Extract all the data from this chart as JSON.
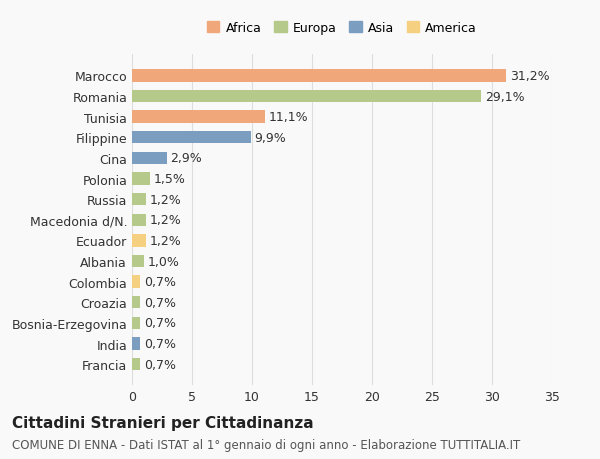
{
  "categories": [
    "Francia",
    "India",
    "Bosnia-Erzegovina",
    "Croazia",
    "Colombia",
    "Albania",
    "Ecuador",
    "Macedonia d/N.",
    "Russia",
    "Polonia",
    "Cina",
    "Filippine",
    "Tunisia",
    "Romania",
    "Marocco"
  ],
  "values": [
    0.7,
    0.7,
    0.7,
    0.7,
    0.7,
    1.0,
    1.2,
    1.2,
    1.2,
    1.5,
    2.9,
    9.9,
    11.1,
    29.1,
    31.2
  ],
  "labels": [
    "0,7%",
    "0,7%",
    "0,7%",
    "0,7%",
    "0,7%",
    "1,0%",
    "1,2%",
    "1,2%",
    "1,2%",
    "1,5%",
    "2,9%",
    "9,9%",
    "11,1%",
    "29,1%",
    "31,2%"
  ],
  "continents": [
    "Europa",
    "Asia",
    "Europa",
    "Europa",
    "America",
    "Europa",
    "America",
    "Europa",
    "Europa",
    "Europa",
    "Asia",
    "Asia",
    "Africa",
    "Europa",
    "Africa"
  ],
  "colors": {
    "Africa": "#F0A87A",
    "Europa": "#B5C98A",
    "Asia": "#7B9DC0",
    "America": "#F5D080"
  },
  "legend_order": [
    "Africa",
    "Europa",
    "Asia",
    "America"
  ],
  "xlim": [
    0,
    35
  ],
  "xticks": [
    0,
    5,
    10,
    15,
    20,
    25,
    30,
    35
  ],
  "title": "Cittadini Stranieri per Cittadinanza",
  "subtitle": "COMUNE DI ENNA - Dati ISTAT al 1° gennaio di ogni anno - Elaborazione TUTTITALIA.IT",
  "bg_color": "#f9f9f9",
  "grid_color": "#dddddd",
  "bar_height": 0.6,
  "label_fontsize": 9,
  "tick_fontsize": 9,
  "title_fontsize": 11,
  "subtitle_fontsize": 8.5
}
